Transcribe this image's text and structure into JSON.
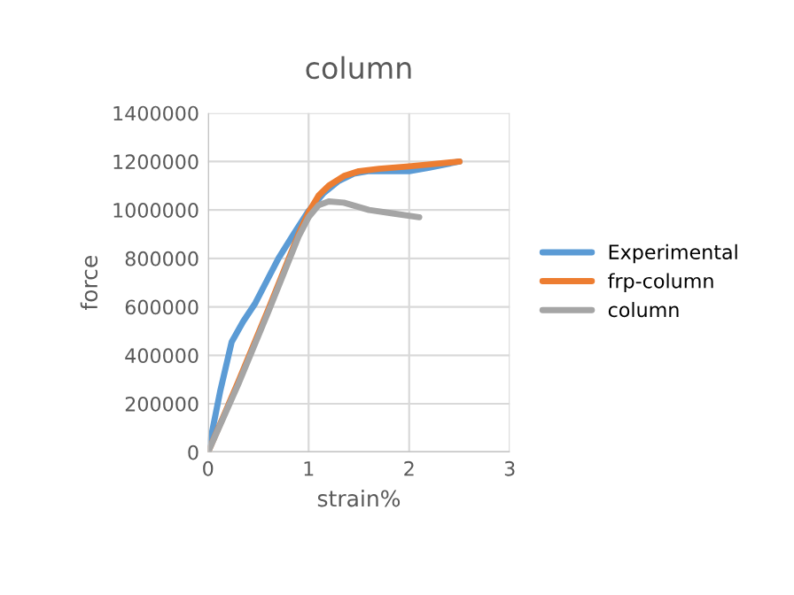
{
  "chart_data": {
    "type": "line",
    "title": "column",
    "xlabel": "strain%",
    "ylabel": "force",
    "xlim": [
      0,
      3
    ],
    "ylim": [
      0,
      1400000
    ],
    "xticks": [
      0,
      1,
      2,
      3
    ],
    "yticks": [
      0,
      200000,
      400000,
      600000,
      800000,
      1000000,
      1200000,
      1400000
    ],
    "grid": true,
    "legend": "right",
    "marker": "none",
    "series": [
      {
        "name": "Experimental",
        "color": "#5b9bd5",
        "x": [
          0,
          0.12,
          0.235,
          0.35,
          0.47,
          0.6,
          0.7,
          0.85,
          1.0,
          1.15,
          1.3,
          1.45,
          1.59,
          1.8,
          2.0,
          2.2,
          2.5
        ],
        "values": [
          0,
          250000,
          455000,
          540000,
          615000,
          720000,
          800000,
          900000,
          996000,
          1070000,
          1120000,
          1150000,
          1160000,
          1160000,
          1160000,
          1175000,
          1200000
        ]
      },
      {
        "name": "frp-column",
        "color": "#ed7d31",
        "x": [
          0,
          0.3,
          0.6,
          0.9,
          1.0,
          1.1,
          1.2,
          1.35,
          1.5,
          1.7,
          2.0,
          2.25,
          2.5
        ],
        "values": [
          0,
          290000,
          590000,
          900000,
          990000,
          1060000,
          1100000,
          1140000,
          1160000,
          1170000,
          1180000,
          1190000,
          1200000
        ]
      },
      {
        "name": "column",
        "color": "#a5a5a5",
        "x": [
          0,
          0.3,
          0.6,
          0.9,
          1.0,
          1.1,
          1.2,
          1.35,
          1.6,
          1.85,
          2.1
        ],
        "values": [
          0,
          280000,
          580000,
          890000,
          970000,
          1020000,
          1035000,
          1030000,
          1000000,
          985000,
          970000
        ]
      }
    ]
  }
}
